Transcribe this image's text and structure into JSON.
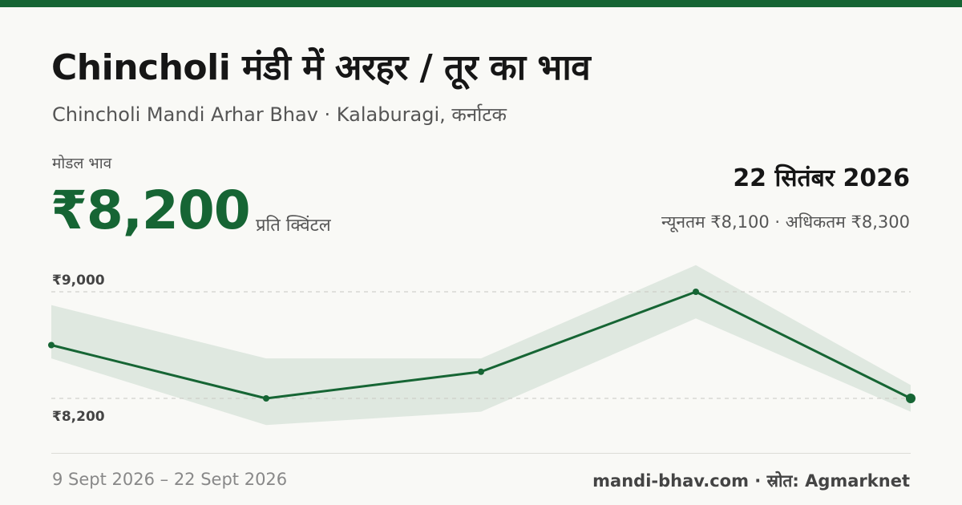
{
  "header": {
    "title": "Chincholi मंडी में अरहर / तूर का भाव",
    "subtitle": "Chincholi Mandi Arhar Bhav · Kalaburagi, कर्नाटक"
  },
  "price": {
    "label": "मोडल भाव",
    "value": "₹8,200",
    "unit": "प्रति क्विंटल"
  },
  "summary": {
    "date": "22 सितंबर 2026",
    "range": "न्यूनतम ₹8,100 · अधिकतम ₹8,300"
  },
  "footer": {
    "dates": "9 Sept 2026 – 22 Sept 2026",
    "source": "mandi-bhav.com · स्रोत: Agmarknet"
  },
  "colors": {
    "accent": "#166534",
    "band": "#dfe8e0",
    "gridline": "#c8c8c2"
  },
  "chart_data": {
    "type": "line",
    "ylim": [
      8200,
      9000
    ],
    "gridlines": [
      {
        "value": 9000,
        "label": "₹9,000"
      },
      {
        "value": 8200,
        "label": "₹8,200"
      }
    ],
    "series": [
      {
        "values": [
          8600,
          8200,
          8400,
          9000,
          8200
        ]
      }
    ],
    "band": {
      "min": [
        8500,
        8000,
        8100,
        8800,
        8100
      ],
      "max": [
        8900,
        8500,
        8500,
        9200,
        8300
      ]
    },
    "highlight_last": true
  }
}
